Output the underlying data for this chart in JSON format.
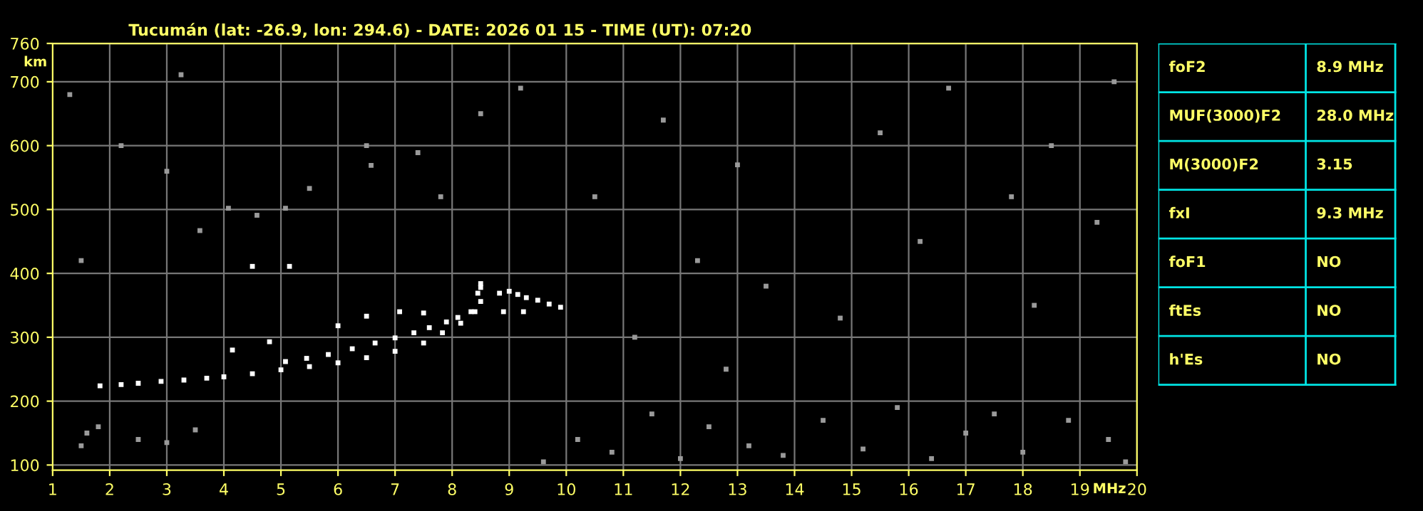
{
  "chart_data": [
    {
      "type": "scatter",
      "title": "Tucumán (lat: -26.9, lon: 294.6) - DATE: 2026 01 15 - TIME (UT): 07:20",
      "xlabel": "MHz",
      "ylabel": "km",
      "xlim": [
        1,
        20
      ],
      "xticks": [
        1,
        2,
        3,
        4,
        5,
        6,
        7,
        8,
        9,
        10,
        11,
        12,
        13,
        14,
        15,
        16,
        17,
        18,
        19,
        20
      ],
      "ylim": [
        92,
        760
      ],
      "yticks": [
        100,
        200,
        300,
        400,
        500,
        600,
        700,
        760
      ],
      "grid": true,
      "marker": "square",
      "legend": false,
      "series": [
        {
          "color": "#ffffff",
          "x": [
            1.83,
            2.2,
            2.5,
            2.9,
            3.3,
            3.7,
            4.0,
            4.5,
            5.0,
            5.5,
            6.0,
            6.5,
            7.0,
            7.5,
            7.83,
            8.15,
            8.4,
            8.5,
            8.5
          ],
          "values": [
            224,
            226,
            228,
            231,
            233,
            236,
            238,
            243,
            249,
            254,
            260,
            268,
            278,
            291,
            307,
            322,
            340,
            356,
            378
          ]
        },
        {
          "color": "#ffffff",
          "x": [
            5.08,
            5.45,
            5.83,
            6.25,
            6.65,
            7.0,
            7.33,
            7.6,
            7.9,
            8.1,
            8.33,
            8.45,
            8.5
          ],
          "values": [
            262,
            267,
            273,
            282,
            291,
            299,
            307,
            315,
            324,
            331,
            340,
            369,
            384
          ]
        },
        {
          "color": "#ffffff",
          "x": [
            8.83,
            9.0,
            9.15,
            9.3,
            9.5,
            9.7,
            9.9,
            8.9,
            9.25,
            4.15,
            4.8,
            6.0,
            6.5,
            7.08,
            7.5,
            4.5,
            5.15
          ],
          "values": [
            369,
            372,
            367,
            362,
            358,
            352,
            347,
            340,
            340,
            280,
            293,
            318,
            333,
            340,
            338,
            411,
            411
          ]
        },
        {
          "color": "#9a9a9a",
          "x": [
            3.58,
            4.08,
            4.58,
            5.08,
            5.5,
            6.58,
            7.4,
            3.25,
            1.6,
            1.5,
            1.8,
            2.5,
            3.0,
            3.5,
            9.6,
            10.2,
            10.8,
            11.5,
            12.0,
            12.5,
            13.2,
            13.8,
            14.5,
            15.2,
            15.8,
            16.4,
            17.0,
            17.5,
            18.0,
            18.8,
            19.5,
            19.8,
            11.2,
            12.3,
            13.5,
            14.8,
            16.2,
            17.8,
            18.5,
            19.3,
            19.6,
            11.7,
            13.0,
            15.5,
            16.7,
            10.5,
            12.8,
            18.2,
            1.3,
            2.2,
            1.5,
            3.0,
            6.5,
            9.2,
            8.5,
            7.8
          ],
          "values": [
            467,
            502,
            491,
            502,
            533,
            569,
            589,
            711,
            150,
            130,
            160,
            140,
            135,
            155,
            105,
            140,
            120,
            180,
            110,
            160,
            130,
            115,
            170,
            125,
            190,
            110,
            150,
            180,
            120,
            170,
            140,
            105,
            300,
            420,
            380,
            330,
            450,
            520,
            600,
            480,
            700,
            640,
            570,
            620,
            690,
            520,
            250,
            350,
            680,
            600,
            420,
            560,
            600,
            690,
            650,
            520
          ]
        }
      ]
    },
    {
      "type": "other",
      "annotations": [
        "foF2",
        "8.9 MHz",
        "MUF(3000)F2",
        "28.0 MHz",
        "M(3000)F2",
        "3.15",
        "fxI",
        "9.3 MHz",
        "foF1",
        "NO",
        "ftEs",
        "NO",
        "h'Es",
        "NO"
      ]
    }
  ]
}
